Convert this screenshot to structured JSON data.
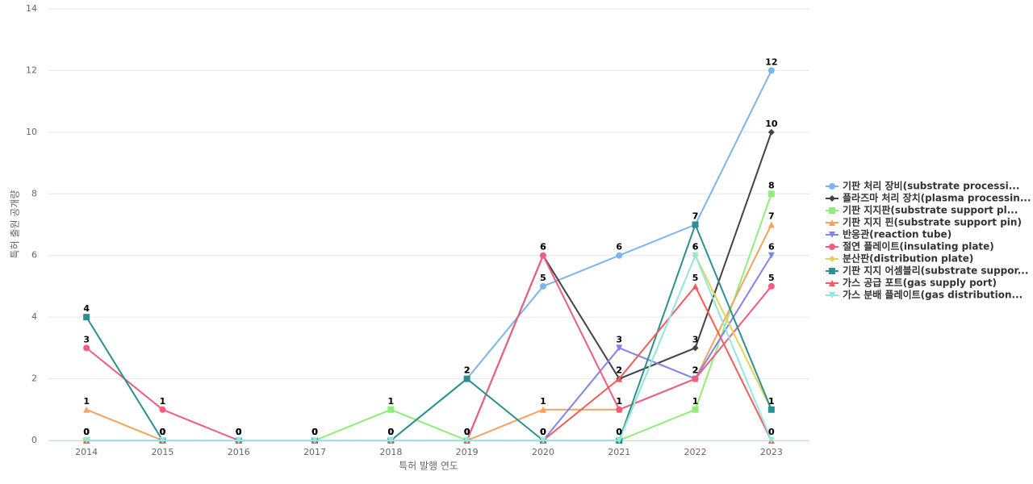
{
  "chart_data": {
    "type": "line",
    "x_label": "특허 발행 연도",
    "y_label": "특허 출원 공개량",
    "categories": [
      "2014",
      "2015",
      "2016",
      "2017",
      "2018",
      "2019",
      "2020",
      "2021",
      "2022",
      "2023"
    ],
    "ylim": [
      0,
      14
    ],
    "yticks": [
      0,
      2,
      4,
      6,
      8,
      10,
      12,
      14
    ],
    "grid": true,
    "series": [
      {
        "name": "기판 처리 장비(substrate processi...",
        "color": "#7cb5ec",
        "values": [
          0,
          0,
          0,
          0,
          0,
          2,
          5,
          6,
          7,
          12
        ]
      },
      {
        "name": "플라즈마 처리 장치(plasma processin...",
        "color": "#434348",
        "values": [
          0,
          0,
          0,
          0,
          0,
          0,
          6,
          2,
          3,
          10
        ]
      },
      {
        "name": "기판 지지판(substrate support pl...",
        "color": "#90ed7d",
        "values": [
          0,
          0,
          0,
          0,
          1,
          0,
          0,
          0,
          1,
          8
        ]
      },
      {
        "name": "기판 지지 핀(substrate support pin)",
        "color": "#f7a35c",
        "values": [
          1,
          0,
          0,
          0,
          0,
          0,
          1,
          1,
          2,
          7
        ]
      },
      {
        "name": "반응관(reaction tube)",
        "color": "#8085e9",
        "values": [
          0,
          0,
          0,
          0,
          0,
          0,
          0,
          3,
          2,
          6
        ]
      },
      {
        "name": "절연 플레이트(insulating plate)",
        "color": "#f15c80",
        "values": [
          3,
          1,
          0,
          0,
          0,
          0,
          6,
          1,
          2,
          5
        ]
      },
      {
        "name": "분산판(distribution plate)",
        "color": "#e4d354",
        "values": [
          0,
          0,
          0,
          0,
          0,
          0,
          0,
          0,
          6,
          1
        ]
      },
      {
        "name": "기판 지지 어셈블리(substrate suppor...",
        "color": "#2b908f",
        "values": [
          4,
          0,
          0,
          0,
          0,
          2,
          0,
          0,
          7,
          1
        ]
      },
      {
        "name": "가스 공급 포트(gas supply port)",
        "color": "#f45b5b",
        "values": [
          0,
          0,
          0,
          0,
          0,
          0,
          0,
          2,
          5,
          0
        ]
      },
      {
        "name": "가스 분배 플레이트(gas distribution...",
        "color": "#91e8e1",
        "values": [
          0,
          0,
          0,
          0,
          0,
          0,
          0,
          0,
          6,
          0
        ]
      }
    ]
  }
}
